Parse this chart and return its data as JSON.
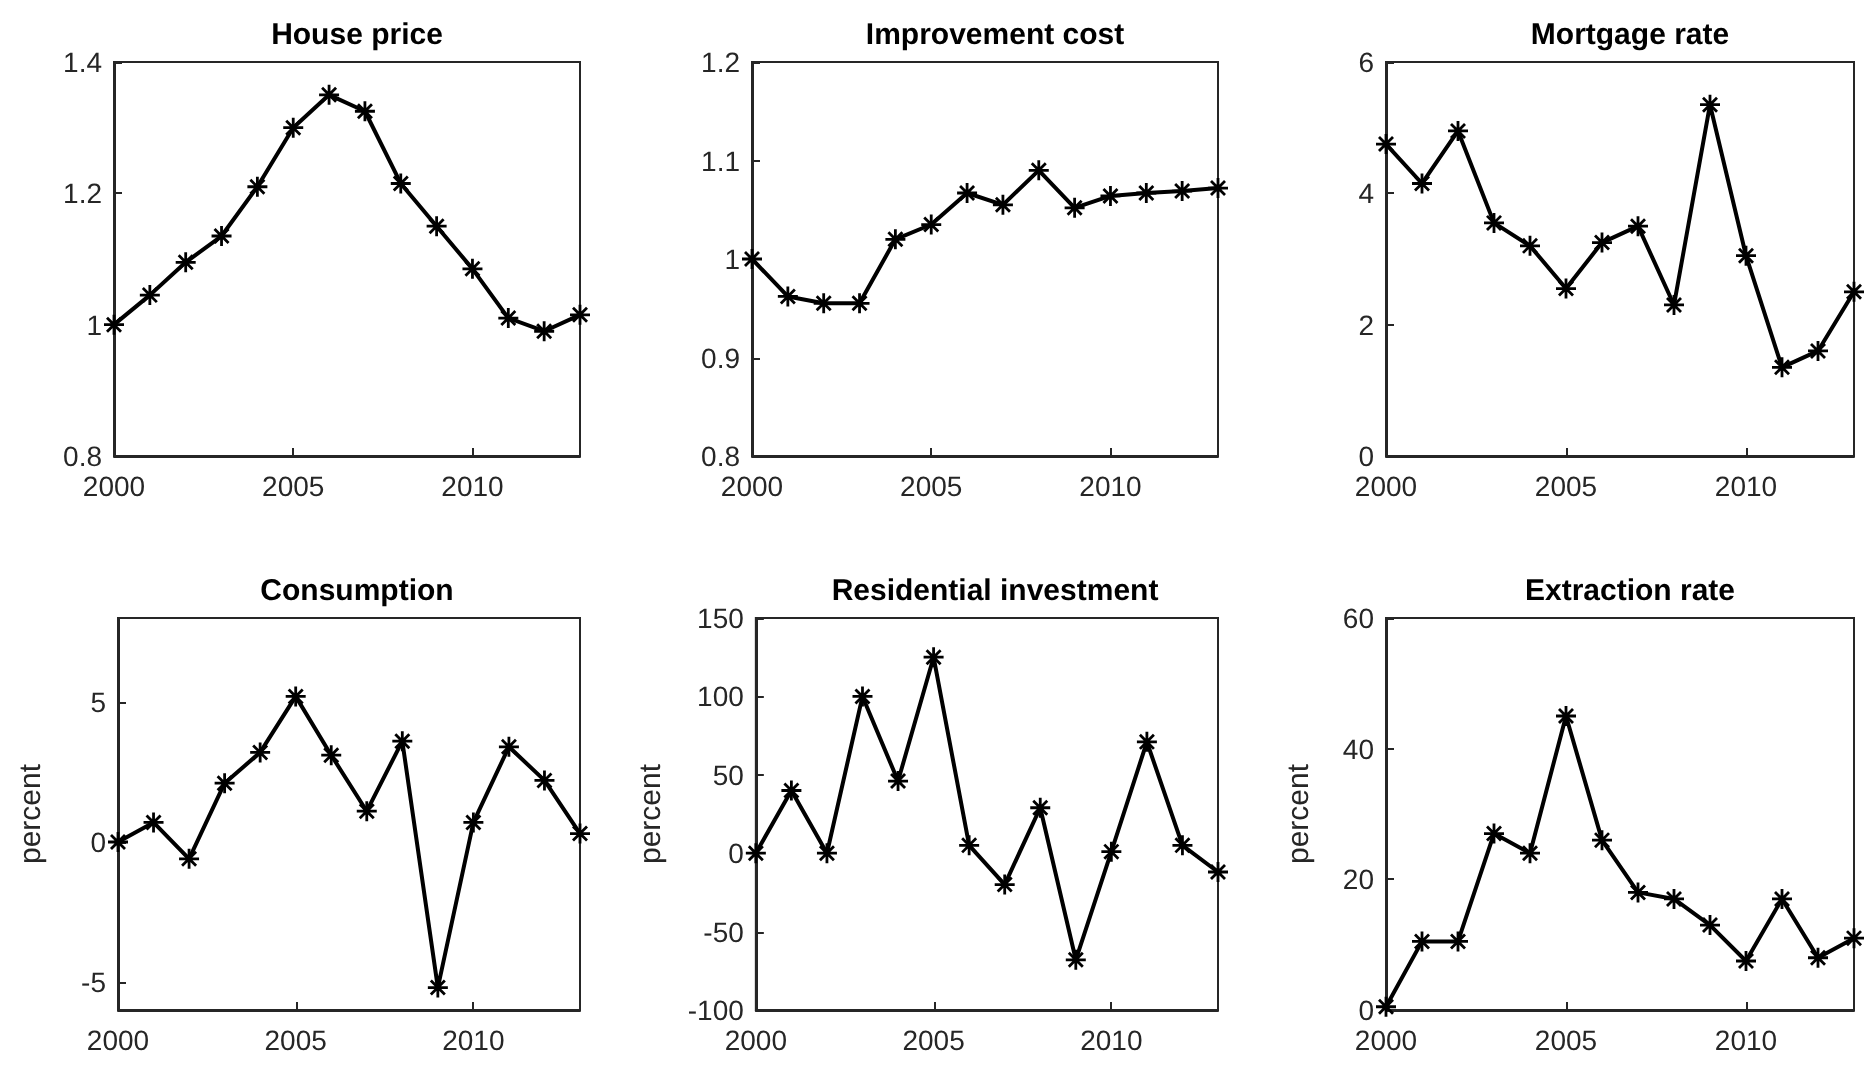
{
  "chart_data": [
    {
      "type": "line",
      "title": "House price",
      "x": [
        2000,
        2001,
        2002,
        2003,
        2004,
        2005,
        2006,
        2007,
        2008,
        2009,
        2010,
        2011,
        2012,
        2013
      ],
      "series": [
        {
          "color": "#000000",
          "values": [
            1.0,
            1.045,
            1.095,
            1.135,
            1.21,
            1.3,
            1.35,
            1.325,
            1.215,
            1.15,
            1.085,
            1.01,
            0.99,
            1.015
          ]
        }
      ],
      "xlim": [
        2000,
        2013
      ],
      "xticks": [
        2000,
        2005,
        2010
      ],
      "ylim": [
        0.8,
        1.4
      ],
      "yticks": [
        0.8,
        1,
        1.2,
        1.4
      ],
      "grid": false,
      "marker": "star",
      "line_style": "solid"
    },
    {
      "type": "line",
      "title": "Improvement cost",
      "x": [
        2000,
        2001,
        2002,
        2003,
        2004,
        2005,
        2006,
        2007,
        2008,
        2009,
        2010,
        2011,
        2012,
        2013
      ],
      "series": [
        {
          "color": "#000000",
          "values": [
            1.0,
            0.962,
            0.955,
            0.955,
            1.02,
            1.035,
            1.067,
            1.055,
            1.09,
            1.052,
            1.064,
            1.067,
            1.069,
            1.072
          ]
        }
      ],
      "xlim": [
        2000,
        2013
      ],
      "xticks": [
        2000,
        2005,
        2010
      ],
      "ylim": [
        0.8,
        1.2
      ],
      "yticks": [
        0.8,
        0.9,
        1,
        1.1,
        1.2
      ],
      "grid": false,
      "marker": "star",
      "line_style": "solid"
    },
    {
      "type": "line",
      "title": "Mortgage rate",
      "x": [
        2000,
        2001,
        2002,
        2003,
        2004,
        2005,
        2006,
        2007,
        2008,
        2009,
        2010,
        2011,
        2012,
        2013
      ],
      "series": [
        {
          "color": "#000000",
          "values": [
            4.75,
            4.15,
            4.95,
            3.55,
            3.2,
            2.55,
            3.25,
            3.5,
            2.3,
            5.35,
            3.05,
            1.35,
            1.6,
            2.5
          ]
        }
      ],
      "xlim": [
        2000,
        2013
      ],
      "xticks": [
        2000,
        2005,
        2010
      ],
      "ylim": [
        0,
        6
      ],
      "yticks": [
        0,
        2,
        4,
        6
      ],
      "grid": false,
      "marker": "star",
      "line_style": "solid"
    },
    {
      "type": "line",
      "title": "Consumption",
      "ylabel": "percent",
      "x": [
        2000,
        2001,
        2002,
        2003,
        2004,
        2005,
        2006,
        2007,
        2008,
        2009,
        2010,
        2011,
        2012,
        2013
      ],
      "series": [
        {
          "color": "#000000",
          "values": [
            0,
            0.7,
            -0.6,
            2.1,
            3.2,
            5.2,
            3.1,
            1.1,
            3.6,
            -5.2,
            0.7,
            3.4,
            2.2,
            0.3
          ]
        }
      ],
      "xlim": [
        2000,
        2013
      ],
      "xticks": [
        2000,
        2005,
        2010
      ],
      "ylim": [
        -6,
        8
      ],
      "yticks": [
        -5,
        0,
        5
      ],
      "grid": false,
      "marker": "star",
      "line_style": "solid"
    },
    {
      "type": "line",
      "title": "Residential investment",
      "ylabel": "percent",
      "x": [
        2000,
        2001,
        2002,
        2003,
        2004,
        2005,
        2006,
        2007,
        2008,
        2009,
        2010,
        2011,
        2012,
        2013
      ],
      "series": [
        {
          "color": "#000000",
          "values": [
            0,
            40,
            0,
            100,
            46,
            125,
            5,
            -20,
            29,
            -68,
            1,
            71,
            5,
            -12
          ]
        }
      ],
      "xlim": [
        2000,
        2013
      ],
      "xticks": [
        2000,
        2005,
        2010
      ],
      "ylim": [
        -100,
        150
      ],
      "yticks": [
        -100,
        -50,
        0,
        50,
        100,
        150
      ],
      "grid": false,
      "marker": "star",
      "line_style": "solid"
    },
    {
      "type": "line",
      "title": "Extraction rate",
      "ylabel": "percent",
      "x": [
        2000,
        2001,
        2002,
        2003,
        2004,
        2005,
        2006,
        2007,
        2008,
        2009,
        2010,
        2011,
        2012,
        2013
      ],
      "series": [
        {
          "color": "#000000",
          "values": [
            0.5,
            10.5,
            10.5,
            27,
            24,
            45,
            26,
            18,
            17,
            13,
            7.5,
            17,
            8,
            11
          ]
        }
      ],
      "xlim": [
        2000,
        2013
      ],
      "xticks": [
        2000,
        2005,
        2010
      ],
      "ylim": [
        0,
        60
      ],
      "yticks": [
        0,
        20,
        40,
        60
      ],
      "grid": false,
      "marker": "star",
      "line_style": "solid"
    }
  ]
}
